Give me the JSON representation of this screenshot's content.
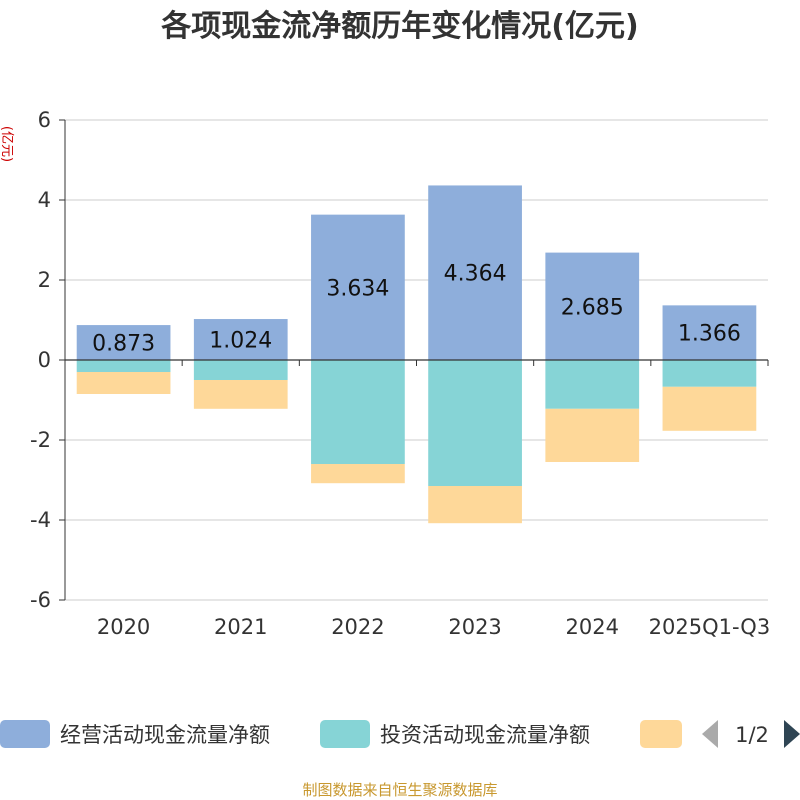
{
  "chart_data": {
    "type": "bar",
    "stacked": true,
    "title": "各项现金流净额历年变化情况(亿元)",
    "ylabel": "(亿元)",
    "ylim": [
      -6,
      6
    ],
    "yticks": [
      -6,
      -4,
      -2,
      0,
      2,
      4,
      6
    ],
    "categories": [
      "2020",
      "2021",
      "2022",
      "2023",
      "2024",
      "2025Q1-Q3"
    ],
    "series": [
      {
        "name": "经营活动现金流量净额",
        "color": "#8eaedb",
        "values": [
          0.873,
          1.024,
          3.634,
          4.364,
          2.685,
          1.366
        ],
        "labels": [
          "0.873",
          "1.024",
          "3.634",
          "4.364",
          "2.685",
          "1.366"
        ]
      },
      {
        "name": "投资活动现金流量净额",
        "color": "#86d4d6",
        "values": [
          -0.3,
          -0.5,
          -2.6,
          -3.15,
          -1.22,
          -0.67
        ]
      },
      {
        "name": "",
        "color": "#fed899",
        "values": [
          -0.55,
          -0.72,
          -0.48,
          -0.93,
          -1.33,
          -1.1
        ]
      }
    ],
    "legend_page": "1/2",
    "source": "制图数据来自恒生聚源数据库"
  },
  "colors": {
    "axis": "#333333",
    "grid": "#cccccc",
    "unit": "#cc0000",
    "source": "#c8982f",
    "arrow_disabled": "#aaaaaa",
    "arrow_active": "#2f4554"
  }
}
